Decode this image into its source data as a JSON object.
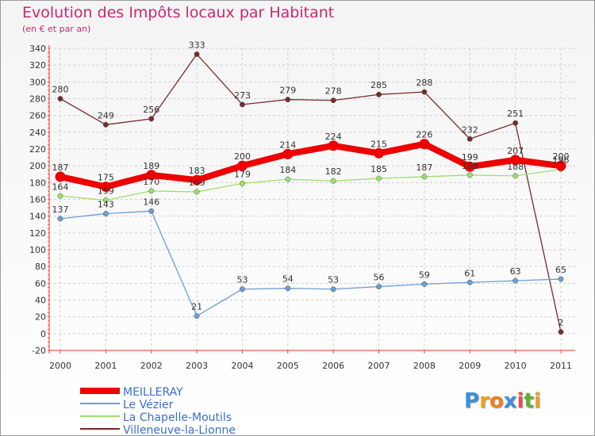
{
  "chart_data": {
    "type": "line",
    "title": "Evolution des Impôts locaux par Habitant",
    "subtitle": "(en € et par an)",
    "xlabel": "",
    "ylabel": "",
    "ylim": [
      -20,
      340
    ],
    "yticks": [
      -20,
      0,
      20,
      40,
      60,
      80,
      100,
      120,
      140,
      160,
      180,
      200,
      220,
      240,
      260,
      280,
      300,
      320,
      340
    ],
    "x": [
      "2000",
      "2001",
      "2002",
      "2003",
      "2004",
      "2005",
      "2006",
      "2007",
      "2008",
      "2009",
      "2010",
      "2011"
    ],
    "grid": true,
    "legend_position": "bottom-left",
    "series": [
      {
        "name": "MEILLERAY",
        "color": "#ee0000",
        "thick": true,
        "values": [
          187,
          175,
          189,
          183,
          200,
          214,
          224,
          215,
          226,
          199,
          207,
          200
        ],
        "labels": [
          "187",
          "175",
          "189",
          "183",
          "200",
          "214",
          "224",
          "215",
          "226",
          "199",
          "207",
          "200"
        ]
      },
      {
        "name": "Le Vézier",
        "color": "#6a9fd6",
        "values": [
          137,
          143,
          146,
          21,
          53,
          54,
          53,
          56,
          59,
          61,
          63,
          65
        ],
        "labels": [
          "137",
          "143",
          "146",
          "21",
          "53",
          "54",
          "53",
          "56",
          "59",
          "61",
          "63",
          "65"
        ]
      },
      {
        "name": "La Chapelle-Moutils",
        "color": "#9ee06a",
        "values": [
          164,
          159,
          170,
          169,
          179,
          184,
          182,
          185,
          187,
          189,
          188,
          196
        ],
        "labels": [
          "164",
          "159",
          "170",
          "169",
          "179",
          "184",
          "182",
          "185",
          "187",
          "189",
          "188",
          "196"
        ]
      },
      {
        "name": "Villeneuve-la-Lionne",
        "color": "#7a2a2a",
        "values": [
          280,
          249,
          256,
          333,
          273,
          279,
          278,
          285,
          288,
          232,
          251,
          2
        ],
        "labels": [
          "280",
          "249",
          "256",
          "333",
          "273",
          "279",
          "278",
          "285",
          "288",
          "232",
          "251",
          "2"
        ]
      }
    ]
  },
  "logo": {
    "letters": [
      "P",
      "r",
      "o",
      "x",
      "i",
      "t",
      "i"
    ],
    "colors": [
      "#3a8fd8",
      "#f0a020",
      "#f08020",
      "#3a8fd8",
      "#e05050",
      "#60b030",
      "#f0a020"
    ]
  }
}
